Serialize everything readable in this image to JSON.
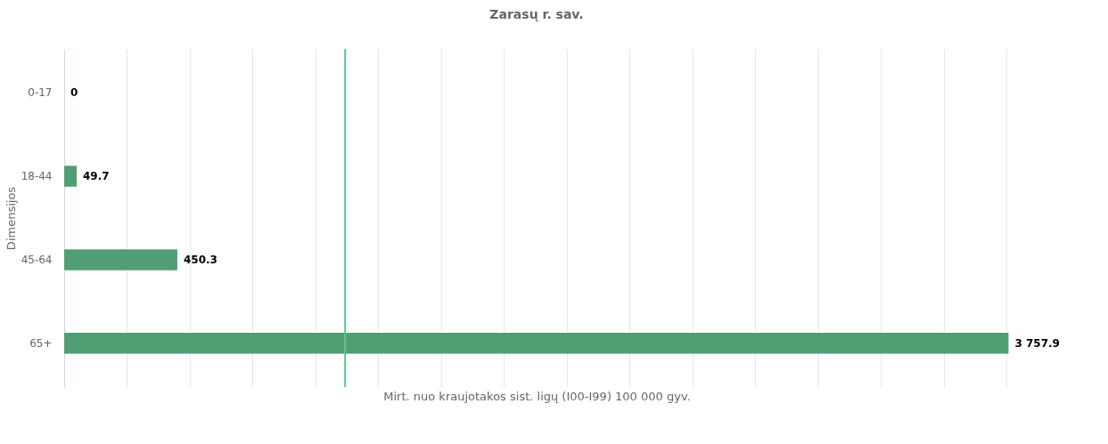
{
  "chart_data": {
    "type": "bar",
    "orientation": "horizontal",
    "title": "Zarasų r. sav.",
    "xlabel": "Mirt. nuo kraujotakos sist. ligų (I00-I99) 100 000 gyv.",
    "ylabel": "Dimensijos",
    "categories": [
      "0-17",
      "18-44",
      "45-64",
      "65+"
    ],
    "values": [
      0,
      49.7,
      450.3,
      3757.9
    ],
    "value_labels": [
      "0",
      "49.7",
      "450.3",
      "3 757.9"
    ],
    "color": "#529e74",
    "xlim": [
      0,
      3760
    ],
    "xticks": [
      {
        "value": 0,
        "label": null
      },
      {
        "value": 250,
        "label": null
      },
      {
        "value": 500,
        "label": null
      },
      {
        "value": 750,
        "label": null
      },
      {
        "value": 1000,
        "label": null
      },
      {
        "value": 1250,
        "label": null
      },
      {
        "value": 1500,
        "label": null
      },
      {
        "value": 1750,
        "label": null
      },
      {
        "value": 2000,
        "label": null
      },
      {
        "value": 2250,
        "label": null
      },
      {
        "value": 2500,
        "label": null
      },
      {
        "value": 2750,
        "label": null
      },
      {
        "value": 3000,
        "label": null
      },
      {
        "value": 3250,
        "label": null
      },
      {
        "value": 3500,
        "label": null
      },
      {
        "value": 3750,
        "label": null
      }
    ],
    "ref_lines": [
      {
        "axis": "x",
        "value": 1118,
        "color": "#5cc596"
      }
    ],
    "grid": "x",
    "tick_labels": "y"
  }
}
